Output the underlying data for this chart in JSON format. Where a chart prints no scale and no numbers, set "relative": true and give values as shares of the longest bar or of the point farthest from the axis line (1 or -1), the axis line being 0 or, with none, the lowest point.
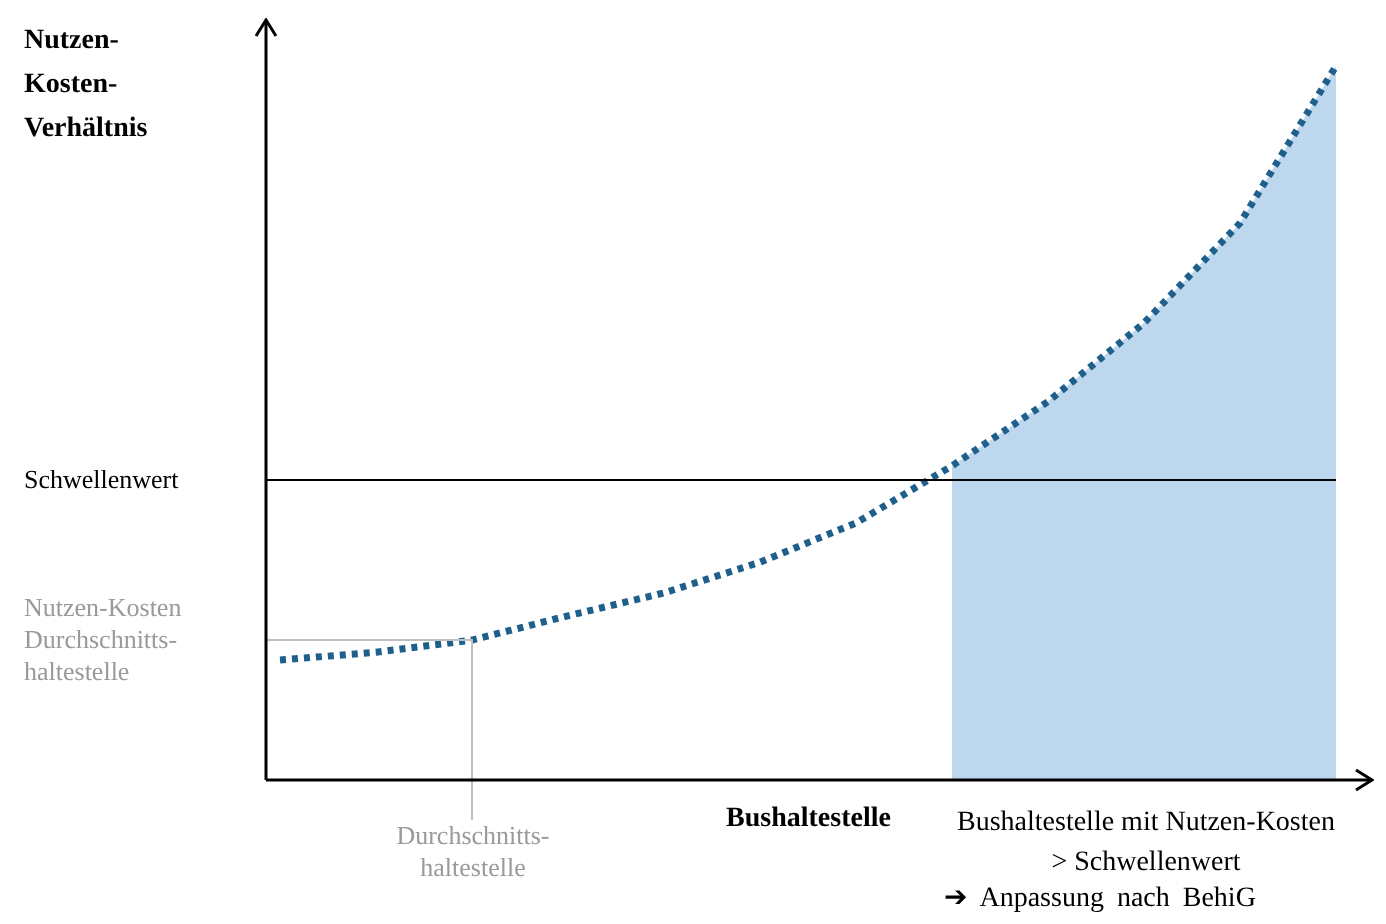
{
  "chart_data": {
    "type": "line",
    "relative": true,
    "ylabel": "Nutzen-Kosten-Verhältnis",
    "xlabel": "Bushaltestelle",
    "categories": [
      null,
      null,
      null,
      null,
      null,
      null,
      null,
      null,
      null,
      null,
      null,
      null
    ],
    "series": [
      {
        "type": "area",
        "color": "#bdd7ee",
        "values": [
          null,
          null,
          null,
          null,
          null,
          null,
          null,
          0.44,
          0.53,
          0.64,
          0.78,
          1
        ]
      },
      {
        "color": "#1f5f8b",
        "line_style": "dotted",
        "values": [
          0.168,
          0.179,
          0.196,
          0.23,
          0.262,
          0.305,
          0.36,
          0.44,
          0.53,
          0.64,
          0.78,
          1
        ]
      }
    ],
    "ref_lines": [
      {
        "axis": "y",
        "value": 0.42,
        "label": "Schwellenwert",
        "color": "#000000"
      },
      {
        "axis": "y",
        "value": 0.196,
        "label": "Nutzen-Kosten Durchschnitts-haltestelle",
        "color": "#bfbfbf"
      }
    ],
    "annotations": [
      "Durchschnitts-haltestelle",
      "Bushaltestelle mit Nutzen-Kosten > Schwellenwert",
      "➔ Anpassung nach BehiG"
    ],
    "grid": false,
    "legend": false,
    "marker": "none"
  }
}
